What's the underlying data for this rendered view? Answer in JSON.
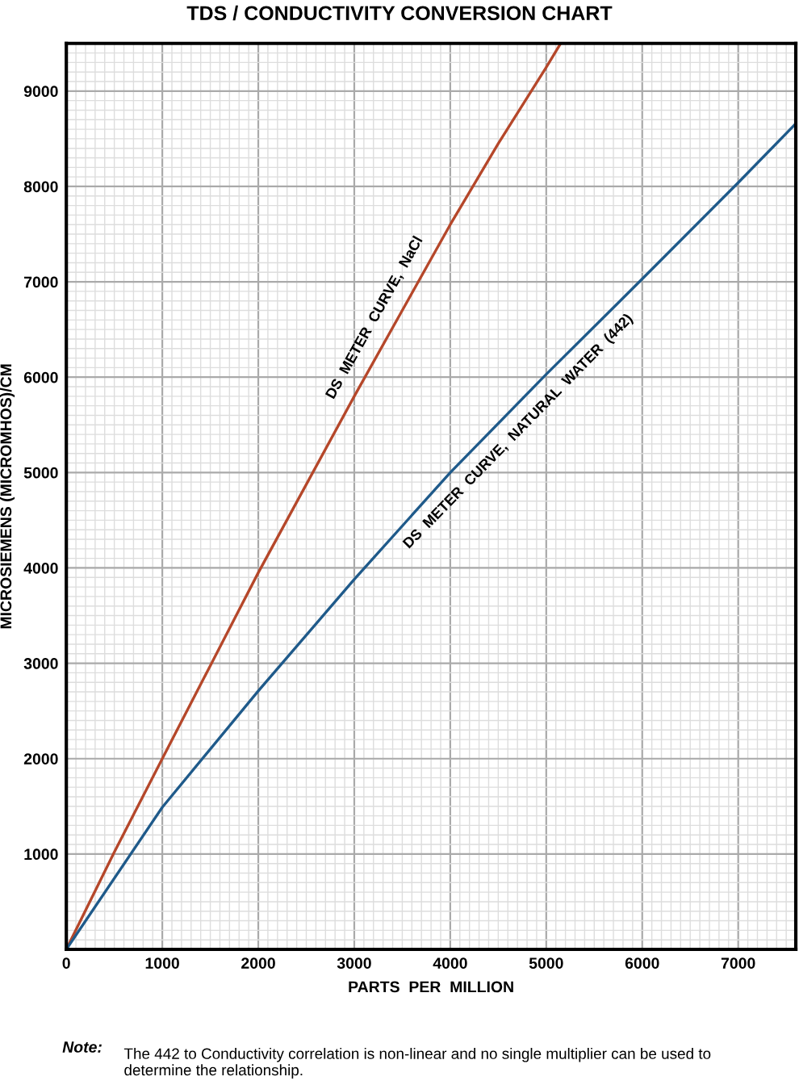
{
  "chart_data": {
    "type": "line",
    "title": "TDS / CONDUCTIVITY CONVERSION CHART",
    "xlabel": "PARTS  PER  MILLION",
    "ylabel": "MICROSIEMENS (MICROMHOS)/CM",
    "series": [
      {
        "color": "#b5472a",
        "x": [
          0,
          500,
          1000,
          2000,
          3000,
          3500,
          4000,
          4500,
          5000,
          5150
        ],
        "values": [
          0,
          1020,
          2000,
          3950,
          5800,
          6700,
          7600,
          8450,
          9250,
          9500
        ]
      },
      {
        "color": "#1f5a8a",
        "x": [
          0,
          1000,
          2000,
          3000,
          4000,
          5000,
          6000,
          7000,
          7600
        ],
        "values": [
          0,
          1490,
          2710,
          3880,
          5000,
          6030,
          7030,
          8040,
          8660
        ]
      }
    ],
    "xlim": [
      0,
      7600
    ],
    "ylim": [
      0,
      9500
    ],
    "xticks": [
      0,
      1000,
      2000,
      3000,
      4000,
      5000,
      6000,
      7000
    ],
    "yticks": [
      1000,
      2000,
      3000,
      4000,
      5000,
      6000,
      7000,
      8000,
      9000
    ],
    "grid": true,
    "marker": "none",
    "line_style": "solid",
    "annotations": [
      "DS  METER  CURVE,  NaCl",
      "DS  METER  CURVE,  NATURAL  WATER  (442)",
      "Note:",
      "The 442 to Conductivity correlation is non-linear and no single multiplier can be used to determine the relationship."
    ]
  }
}
